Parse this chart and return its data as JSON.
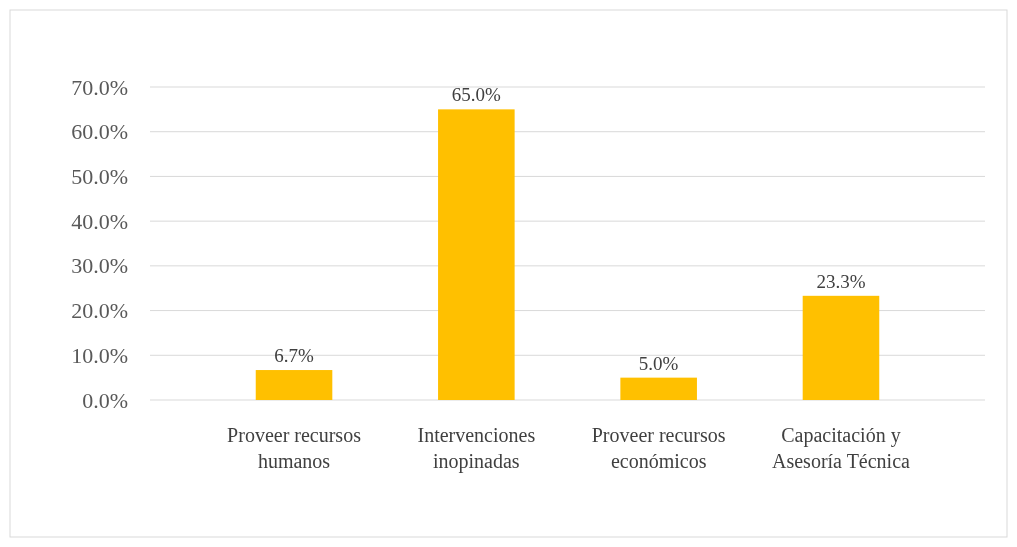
{
  "chart_data": {
    "type": "bar",
    "categories": [
      "Proveer recursos humanos",
      "Intervenciones inopinadas",
      "Proveer recursos económicos",
      "Capacitación y Asesoría Técnica"
    ],
    "values": [
      6.7,
      65.0,
      5.0,
      23.3
    ],
    "value_labels": [
      "6.7%",
      "65.0%",
      "5.0%",
      "23.3%"
    ],
    "color": "#ffc000",
    "ylim": [
      0,
      70
    ],
    "yticks": [
      {
        "value": 0,
        "label": "0.0%"
      },
      {
        "value": 10,
        "label": "10.0%"
      },
      {
        "value": 20,
        "label": "20.0%"
      },
      {
        "value": 30,
        "label": "30.0%"
      },
      {
        "value": 40,
        "label": "40.0%"
      },
      {
        "value": 50,
        "label": "50.0%"
      },
      {
        "value": 60,
        "label": "60.0%"
      },
      {
        "value": 70,
        "label": "70.0%"
      }
    ],
    "grid": "y"
  }
}
